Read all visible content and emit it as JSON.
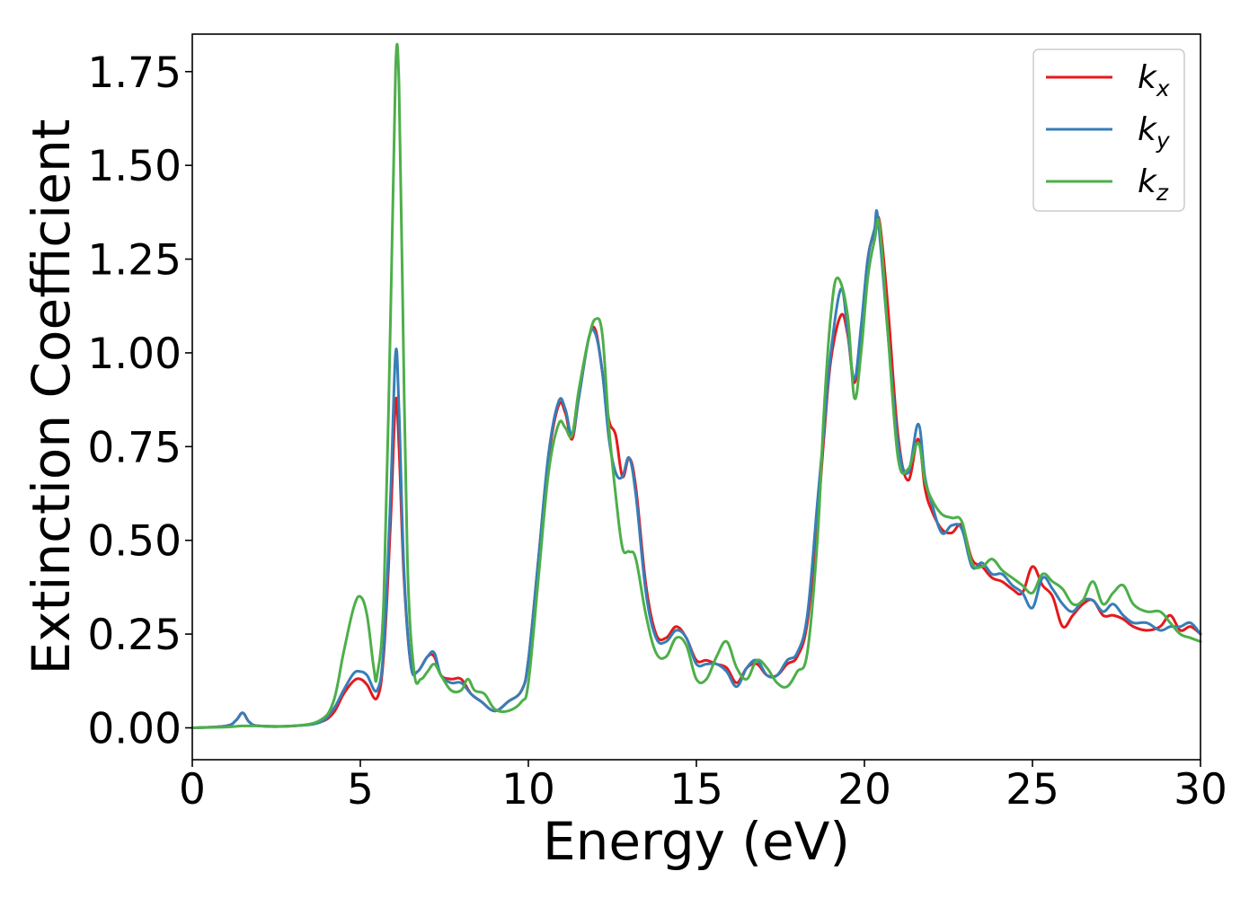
{
  "chart_data": {
    "type": "line",
    "title": "",
    "xlabel": "Energy (eV)",
    "ylabel": "Extinction Coefficient",
    "xlim": [
      0,
      30
    ],
    "ylim": [
      -0.085,
      1.85
    ],
    "xticks": [
      0,
      5,
      10,
      15,
      20,
      25,
      30
    ],
    "xtick_labels": [
      "0",
      "5",
      "10",
      "15",
      "20",
      "25",
      "30"
    ],
    "yticks": [
      0.0,
      0.25,
      0.5,
      0.75,
      1.0,
      1.25,
      1.5,
      1.75
    ],
    "ytick_labels": [
      "0.00",
      "0.25",
      "0.50",
      "0.75",
      "1.00",
      "1.25",
      "1.50",
      "1.75"
    ],
    "grid": false,
    "legend_position": "top-right",
    "series": [
      {
        "name": "k_x",
        "label_base": "k",
        "label_sub": "x",
        "color": "#e41a1c",
        "x": [
          0,
          1.0,
          1.3,
          1.5,
          1.7,
          2.0,
          3.0,
          3.8,
          4.2,
          4.5,
          4.8,
          5.0,
          5.2,
          5.5,
          5.7,
          5.9,
          6.05,
          6.15,
          6.3,
          6.5,
          6.7,
          7.0,
          7.2,
          7.4,
          7.7,
          8.0,
          8.3,
          8.6,
          9.0,
          9.4,
          9.8,
          10.0,
          10.3,
          10.6,
          10.9,
          11.1,
          11.3,
          11.5,
          11.8,
          12.0,
          12.2,
          12.4,
          12.6,
          12.8,
          13.0,
          13.2,
          13.5,
          13.8,
          14.1,
          14.4,
          14.7,
          15.0,
          15.3,
          15.6,
          15.9,
          16.2,
          16.5,
          16.8,
          17.1,
          17.4,
          17.7,
          18.0,
          18.3,
          18.6,
          18.8,
          19.0,
          19.3,
          19.5,
          19.7,
          19.9,
          20.1,
          20.3,
          20.45,
          20.7,
          21.0,
          21.3,
          21.6,
          21.8,
          22.0,
          22.3,
          22.6,
          22.9,
          23.2,
          23.5,
          23.8,
          24.1,
          24.4,
          24.7,
          25.0,
          25.3,
          25.6,
          25.9,
          26.2,
          26.5,
          26.8,
          27.1,
          27.4,
          27.7,
          28.0,
          28.4,
          28.8,
          29.1,
          29.4,
          29.7,
          30.0
        ],
        "y": [
          0,
          0.005,
          0.02,
          0.04,
          0.015,
          0.005,
          0.005,
          0.015,
          0.04,
          0.09,
          0.125,
          0.13,
          0.115,
          0.08,
          0.2,
          0.55,
          0.87,
          0.75,
          0.4,
          0.17,
          0.15,
          0.19,
          0.19,
          0.14,
          0.13,
          0.13,
          0.09,
          0.07,
          0.045,
          0.07,
          0.1,
          0.18,
          0.45,
          0.72,
          0.86,
          0.84,
          0.77,
          0.88,
          1.04,
          1.06,
          0.95,
          0.82,
          0.78,
          0.67,
          0.72,
          0.64,
          0.38,
          0.25,
          0.24,
          0.27,
          0.24,
          0.18,
          0.18,
          0.17,
          0.16,
          0.12,
          0.16,
          0.17,
          0.14,
          0.14,
          0.17,
          0.19,
          0.28,
          0.55,
          0.78,
          0.98,
          1.1,
          1.05,
          0.92,
          1.05,
          1.25,
          1.32,
          1.35,
          1.12,
          0.78,
          0.66,
          0.77,
          0.64,
          0.58,
          0.53,
          0.52,
          0.54,
          0.45,
          0.43,
          0.4,
          0.39,
          0.37,
          0.36,
          0.43,
          0.38,
          0.35,
          0.27,
          0.3,
          0.33,
          0.34,
          0.3,
          0.3,
          0.29,
          0.27,
          0.26,
          0.27,
          0.3,
          0.26,
          0.27,
          0.25
        ]
      },
      {
        "name": "k_y",
        "label_base": "k",
        "label_sub": "y",
        "color": "#377eb8",
        "x": [
          0,
          1.0,
          1.3,
          1.5,
          1.7,
          2.0,
          3.0,
          3.8,
          4.2,
          4.5,
          4.8,
          5.0,
          5.2,
          5.5,
          5.7,
          5.9,
          6.05,
          6.15,
          6.3,
          6.5,
          6.7,
          7.0,
          7.2,
          7.4,
          7.7,
          8.0,
          8.3,
          8.6,
          9.0,
          9.4,
          9.8,
          10.0,
          10.3,
          10.6,
          10.9,
          11.1,
          11.3,
          11.5,
          11.8,
          12.0,
          12.2,
          12.4,
          12.6,
          12.8,
          13.0,
          13.2,
          13.5,
          13.8,
          14.1,
          14.4,
          14.7,
          15.0,
          15.3,
          15.6,
          15.9,
          16.2,
          16.5,
          16.8,
          17.1,
          17.4,
          17.7,
          18.0,
          18.3,
          18.6,
          18.8,
          19.0,
          19.3,
          19.5,
          19.7,
          19.9,
          20.1,
          20.3,
          20.4,
          20.7,
          21.0,
          21.3,
          21.6,
          21.8,
          22.0,
          22.3,
          22.6,
          22.9,
          23.2,
          23.5,
          23.8,
          24.1,
          24.4,
          24.7,
          25.0,
          25.3,
          25.6,
          25.9,
          26.2,
          26.5,
          26.8,
          27.1,
          27.4,
          27.7,
          28.0,
          28.4,
          28.8,
          29.1,
          29.4,
          29.7,
          30.0
        ],
        "y": [
          0,
          0.005,
          0.02,
          0.04,
          0.015,
          0.005,
          0.005,
          0.015,
          0.05,
          0.1,
          0.145,
          0.15,
          0.14,
          0.1,
          0.22,
          0.62,
          1.0,
          0.85,
          0.42,
          0.17,
          0.15,
          0.19,
          0.2,
          0.14,
          0.12,
          0.12,
          0.09,
          0.07,
          0.045,
          0.07,
          0.1,
          0.18,
          0.45,
          0.73,
          0.87,
          0.85,
          0.78,
          0.88,
          1.04,
          1.05,
          0.95,
          0.77,
          0.68,
          0.67,
          0.72,
          0.62,
          0.36,
          0.24,
          0.23,
          0.26,
          0.24,
          0.17,
          0.17,
          0.17,
          0.15,
          0.11,
          0.16,
          0.18,
          0.14,
          0.14,
          0.18,
          0.2,
          0.3,
          0.6,
          0.8,
          1.0,
          1.17,
          1.06,
          0.93,
          1.07,
          1.25,
          1.33,
          1.36,
          1.05,
          0.76,
          0.68,
          0.81,
          0.67,
          0.6,
          0.52,
          0.54,
          0.53,
          0.43,
          0.44,
          0.41,
          0.41,
          0.38,
          0.36,
          0.32,
          0.4,
          0.37,
          0.33,
          0.31,
          0.34,
          0.34,
          0.31,
          0.33,
          0.3,
          0.28,
          0.28,
          0.26,
          0.27,
          0.27,
          0.28,
          0.25
        ]
      },
      {
        "name": "k_z",
        "label_base": "k",
        "label_sub": "z",
        "color": "#4daf4a",
        "x": [
          0,
          1.0,
          1.5,
          2.0,
          3.0,
          3.8,
          4.2,
          4.5,
          4.8,
          5.0,
          5.2,
          5.4,
          5.5,
          5.7,
          5.9,
          6.05,
          6.15,
          6.25,
          6.4,
          6.6,
          6.8,
          7.0,
          7.2,
          7.4,
          7.7,
          8.0,
          8.2,
          8.4,
          8.7,
          9.0,
          9.4,
          9.8,
          10.0,
          10.3,
          10.6,
          10.9,
          11.1,
          11.3,
          11.5,
          11.8,
          12.0,
          12.2,
          12.4,
          12.6,
          12.8,
          13.0,
          13.2,
          13.5,
          13.8,
          14.1,
          14.4,
          14.7,
          15.0,
          15.3,
          15.6,
          15.9,
          16.2,
          16.5,
          16.8,
          17.1,
          17.4,
          17.7,
          18.0,
          18.3,
          18.6,
          18.8,
          19.0,
          19.2,
          19.5,
          19.7,
          19.9,
          20.1,
          20.3,
          20.45,
          20.7,
          21.0,
          21.3,
          21.6,
          21.8,
          22.0,
          22.3,
          22.6,
          22.9,
          23.2,
          23.5,
          23.8,
          24.1,
          24.4,
          24.7,
          25.0,
          25.3,
          25.6,
          25.9,
          26.2,
          26.5,
          26.8,
          27.1,
          27.4,
          27.7,
          28.0,
          28.4,
          28.8,
          29.1,
          29.4,
          29.7,
          30.0
        ],
        "y": [
          0,
          0.002,
          0.005,
          0.005,
          0.005,
          0.02,
          0.07,
          0.2,
          0.32,
          0.35,
          0.3,
          0.16,
          0.14,
          0.35,
          1.1,
          1.76,
          1.72,
          1.2,
          0.45,
          0.15,
          0.13,
          0.15,
          0.17,
          0.14,
          0.1,
          0.1,
          0.13,
          0.1,
          0.09,
          0.05,
          0.045,
          0.07,
          0.12,
          0.4,
          0.68,
          0.81,
          0.8,
          0.78,
          0.9,
          1.04,
          1.09,
          1.05,
          0.8,
          0.62,
          0.48,
          0.47,
          0.45,
          0.3,
          0.2,
          0.19,
          0.24,
          0.22,
          0.13,
          0.13,
          0.19,
          0.23,
          0.16,
          0.13,
          0.18,
          0.16,
          0.12,
          0.11,
          0.15,
          0.2,
          0.5,
          0.85,
          1.1,
          1.2,
          1.1,
          0.88,
          1.0,
          1.2,
          1.3,
          1.34,
          1.05,
          0.72,
          0.69,
          0.76,
          0.66,
          0.61,
          0.57,
          0.56,
          0.55,
          0.44,
          0.43,
          0.45,
          0.42,
          0.4,
          0.38,
          0.36,
          0.41,
          0.39,
          0.37,
          0.33,
          0.34,
          0.39,
          0.33,
          0.36,
          0.38,
          0.33,
          0.31,
          0.31,
          0.28,
          0.25,
          0.24,
          0.23
        ]
      }
    ]
  }
}
